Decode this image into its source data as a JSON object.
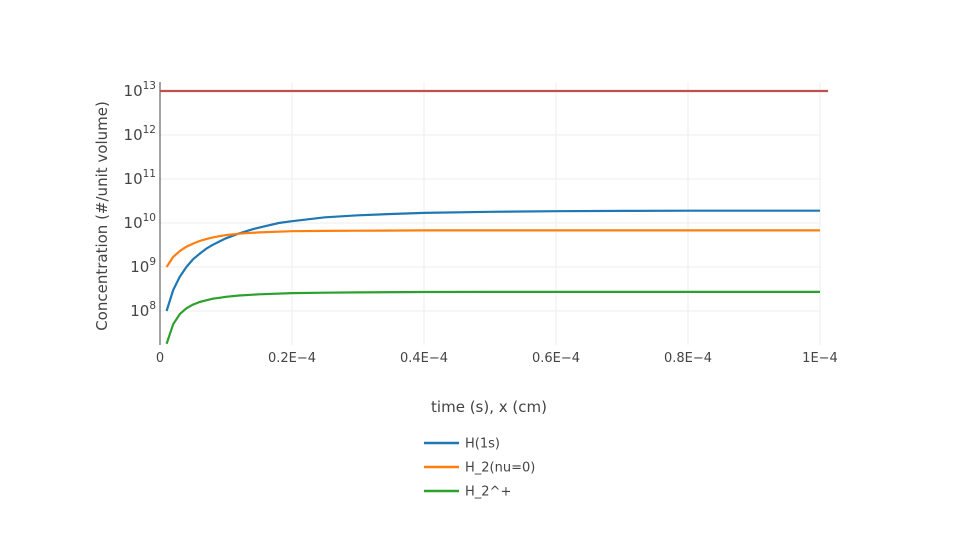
{
  "chart_data": {
    "type": "line",
    "xlabel": "time (s), x (cm)",
    "ylabel": "Concentration (#/unit volume)",
    "yscale": "log",
    "xlim": [
      0,
      0.0001
    ],
    "ylim_log10": [
      7.25,
      13.0
    ],
    "grid": true,
    "legend_position": "bottom-center",
    "x_ticks": [
      {
        "value": 0,
        "label": "0"
      },
      {
        "value": 2e-05,
        "label": "0.2E−4"
      },
      {
        "value": 4e-05,
        "label": "0.4E−4"
      },
      {
        "value": 6e-05,
        "label": "0.6E−4"
      },
      {
        "value": 8e-05,
        "label": "0.8E−4"
      },
      {
        "value": 0.0001,
        "label": "1E−4"
      }
    ],
    "y_ticks": [
      {
        "exp": 8,
        "base": "10",
        "sup": "8"
      },
      {
        "exp": 9,
        "base": "10",
        "sup": "9"
      },
      {
        "exp": 10,
        "base": "10",
        "sup": "10"
      },
      {
        "exp": 11,
        "base": "10",
        "sup": "11"
      },
      {
        "exp": 12,
        "base": "10",
        "sup": "12"
      },
      {
        "exp": 13,
        "base": "10",
        "sup": "13"
      }
    ],
    "series": [
      {
        "name": "H(1s)",
        "color": "#1f77b4",
        "in_legend": true,
        "x": [
          1e-06,
          2e-06,
          3e-06,
          4e-06,
          5e-06,
          6e-06,
          7e-06,
          8e-06,
          9e-06,
          1e-05,
          1.2e-05,
          1.4e-05,
          1.6e-05,
          1.8e-05,
          2e-05,
          2.5e-05,
          3e-05,
          3.5e-05,
          4e-05,
          5e-05,
          6e-05,
          7e-05,
          8e-05,
          9e-05,
          0.0001
        ],
        "y": [
          100000000.0,
          300000000.0,
          600000000.0,
          1000000000.0,
          1500000000.0,
          2000000000.0,
          2600000000.0,
          3200000000.0,
          3800000000.0,
          4500000000.0,
          5800000000.0,
          7200000000.0,
          8500000000.0,
          10000000000.0,
          11000000000.0,
          13500000000.0,
          15000000000.0,
          16000000000.0,
          17000000000.0,
          18000000000.0,
          18500000000.0,
          18800000000.0,
          19000000000.0,
          19000000000.0,
          19000000000.0
        ]
      },
      {
        "name": "H_2(nu=0)",
        "color": "#ff7f0e",
        "in_legend": true,
        "x": [
          1e-06,
          2e-06,
          3e-06,
          4e-06,
          5e-06,
          6e-06,
          7e-06,
          8e-06,
          9e-06,
          1e-05,
          1.2e-05,
          1.5e-05,
          2e-05,
          2.5e-05,
          3e-05,
          4e-05,
          5e-05,
          6e-05,
          8e-05,
          0.0001
        ],
        "y": [
          1000000000.0,
          1700000000.0,
          2300000000.0,
          2900000000.0,
          3400000000.0,
          3900000000.0,
          4300000000.0,
          4700000000.0,
          5000000000.0,
          5300000000.0,
          5700000000.0,
          6100000000.0,
          6500000000.0,
          6600000000.0,
          6700000000.0,
          6800000000.0,
          6800000000.0,
          6800000000.0,
          6800000000.0,
          6800000000.0
        ]
      },
      {
        "name": "H_2^+",
        "color": "#2ca02c",
        "in_legend": true,
        "x": [
          1e-06,
          2e-06,
          3e-06,
          4e-06,
          5e-06,
          6e-06,
          7e-06,
          8e-06,
          9e-06,
          1e-05,
          1.2e-05,
          1.5e-05,
          2e-05,
          2.5e-05,
          3e-05,
          4e-05,
          5e-05,
          6e-05,
          8e-05,
          0.0001
        ],
        "y": [
          18000000.0,
          50000000.0,
          85000000.0,
          115000000.0,
          140000000.0,
          160000000.0,
          175000000.0,
          190000000.0,
          200000000.0,
          210000000.0,
          225000000.0,
          240000000.0,
          255000000.0,
          260000000.0,
          265000000.0,
          270000000.0,
          272000000.0,
          272000000.0,
          272000000.0,
          272000000.0
        ]
      },
      {
        "name": "",
        "color": "#c0504d",
        "in_legend": false,
        "x": [
          0,
          0.0001
        ],
        "y": [
          10000000000000.0,
          10000000000000.0
        ]
      }
    ]
  }
}
